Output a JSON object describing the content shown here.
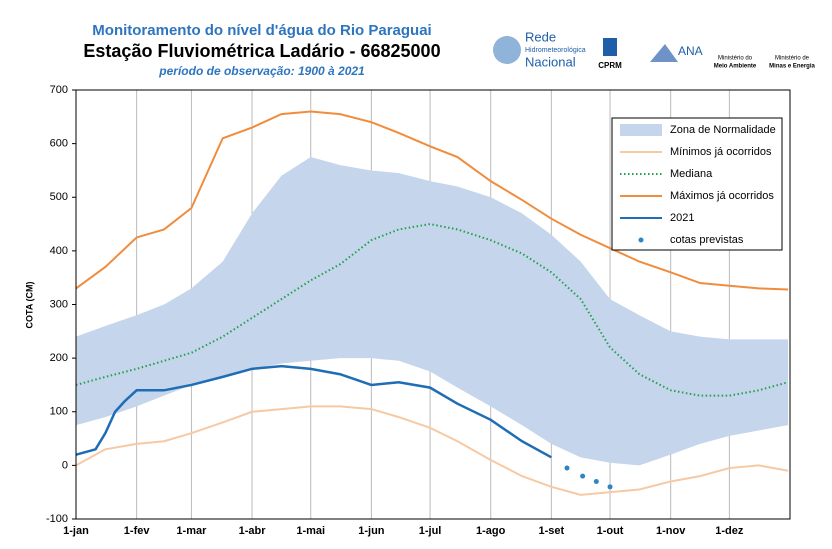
{
  "header": {
    "logos": [
      "Rede",
      "Hidrometeorológica",
      "Nacional",
      "CPRM",
      "ANA",
      "Ministério do",
      "Meio Ambiente",
      "Ministério de",
      "Minas e Energia"
    ]
  },
  "chart_data": {
    "type": "line",
    "title": "Monitoramento do nível d'água do Rio Paraguai",
    "subtitle": "Estação Fluviométrica Ladário - 66825000",
    "note": "período de observação:  1900 à 2021",
    "y_label": "COTA (CM)",
    "x": [
      0,
      15,
      31,
      45,
      59,
      75,
      90,
      105,
      120,
      135,
      151,
      165,
      181,
      195,
      212,
      228,
      243,
      258,
      273,
      288,
      304,
      319,
      334,
      349,
      364
    ],
    "xlim": [
      0,
      365
    ],
    "xticks": [
      {
        "value": 0,
        "label": "1-jan"
      },
      {
        "value": 31,
        "label": "1-fev"
      },
      {
        "value": 59,
        "label": "1-mar"
      },
      {
        "value": 90,
        "label": "1-abr"
      },
      {
        "value": 120,
        "label": "1-mai"
      },
      {
        "value": 151,
        "label": "1-jun"
      },
      {
        "value": 181,
        "label": "1-jul"
      },
      {
        "value": 212,
        "label": "1-ago"
      },
      {
        "value": 243,
        "label": "1-set"
      },
      {
        "value": 273,
        "label": "1-out"
      },
      {
        "value": 304,
        "label": "1-nov"
      },
      {
        "value": 334,
        "label": "1-dez"
      }
    ],
    "ylim": [
      -100,
      700
    ],
    "yticks": [
      -100,
      0,
      100,
      200,
      300,
      400,
      500,
      600,
      700
    ],
    "grid": true,
    "legend": "top-right",
    "series": [
      {
        "name": "Zona de Normalidade",
        "style": "band",
        "color": "#c5d5ec",
        "lower": [
          75,
          90,
          110,
          130,
          150,
          165,
          180,
          190,
          195,
          200,
          200,
          195,
          175,
          145,
          110,
          75,
          40,
          15,
          5,
          0,
          20,
          40,
          55,
          65,
          75
        ],
        "values": [
          240,
          260,
          280,
          300,
          330,
          380,
          470,
          540,
          575,
          560,
          550,
          545,
          530,
          520,
          500,
          470,
          430,
          380,
          310,
          280,
          250,
          240,
          235,
          235,
          235
        ]
      },
      {
        "name": "Mínimos já ocorridos",
        "style": "line",
        "color": "#f7c9a3",
        "values": [
          0,
          30,
          40,
          45,
          60,
          80,
          100,
          105,
          110,
          110,
          105,
          90,
          70,
          45,
          10,
          -20,
          -40,
          -55,
          -50,
          -45,
          -30,
          -20,
          -5,
          0,
          -10
        ]
      },
      {
        "name": "Mediana",
        "style": "dotted",
        "color": "#21a04a",
        "values": [
          150,
          165,
          180,
          195,
          210,
          240,
          275,
          310,
          345,
          375,
          420,
          440,
          450,
          440,
          420,
          395,
          360,
          310,
          220,
          170,
          140,
          130,
          130,
          140,
          155
        ]
      },
      {
        "name": "Máximos já ocorridos",
        "style": "line",
        "color": "#f08c3c",
        "values": [
          330,
          370,
          425,
          440,
          480,
          610,
          630,
          655,
          660,
          655,
          640,
          620,
          595,
          575,
          530,
          495,
          460,
          430,
          405,
          380,
          360,
          340,
          335,
          330,
          328
        ]
      },
      {
        "name": "2021",
        "style": "line",
        "color": "#1f6db5",
        "x": [
          0,
          10,
          15,
          20,
          25,
          31,
          45,
          59,
          75,
          90,
          105,
          120,
          135,
          151,
          165,
          181,
          195,
          212,
          228,
          243
        ],
        "values": [
          20,
          30,
          60,
          100,
          120,
          140,
          140,
          150,
          165,
          180,
          185,
          180,
          170,
          150,
          155,
          145,
          115,
          85,
          45,
          15
        ]
      },
      {
        "name": "cotas previstas",
        "style": "points",
        "color": "#2e86c1",
        "x": [
          251,
          259,
          266,
          273
        ],
        "values": [
          -5,
          -20,
          -30,
          -40
        ]
      }
    ]
  }
}
